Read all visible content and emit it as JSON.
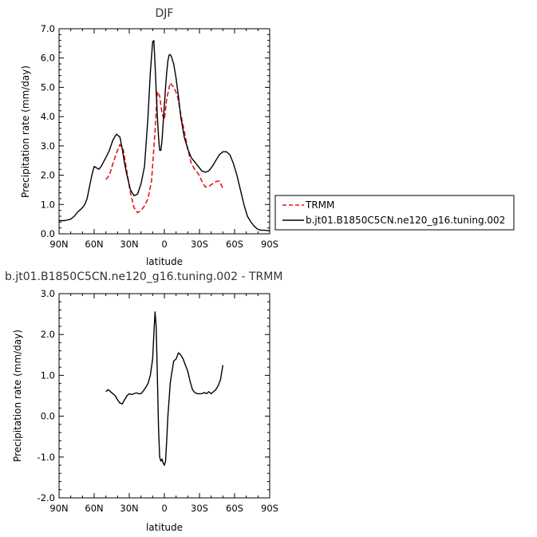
{
  "chart_data": [
    {
      "type": "line",
      "title": "DJF",
      "xlabel": "latitude",
      "ylabel": "Precipitation rate (mm/day)",
      "xlim": [
        90,
        -90
      ],
      "ylim": [
        0,
        7
      ],
      "x_ticks": [
        90,
        60,
        30,
        0,
        -30,
        -60,
        -90
      ],
      "x_tick_labels": [
        "90N",
        "60N",
        "30N",
        "0",
        "30S",
        "60S",
        "90S"
      ],
      "y_ticks": [
        0,
        1,
        2,
        3,
        4,
        5,
        6,
        7
      ],
      "y_tick_labels": [
        "0.0",
        "1.0",
        "2.0",
        "3.0",
        "4.0",
        "5.0",
        "6.0",
        "7.0"
      ],
      "legend": {
        "position": "right",
        "entries": [
          "TRMM",
          "b.jt01.B1850C5CN.ne120_g16.tuning.002"
        ]
      },
      "series": [
        {
          "name": "TRMM",
          "color": "#e8141b",
          "dash": true,
          "x": [
            50,
            47,
            44,
            41,
            38,
            35,
            32,
            29,
            26,
            23,
            20,
            17,
            14,
            11,
            8,
            6,
            4,
            2,
            0,
            -2,
            -5,
            -8,
            -11,
            -14,
            -17,
            -20,
            -23,
            -26,
            -29,
            -32,
            -35,
            -38,
            -41,
            -44,
            -47,
            -50
          ],
          "y": [
            1.85,
            2.0,
            2.4,
            2.75,
            3.05,
            2.85,
            2.1,
            1.4,
            0.9,
            0.72,
            0.8,
            0.95,
            1.2,
            1.8,
            3.5,
            4.85,
            4.7,
            4.1,
            3.9,
            4.6,
            5.15,
            5.0,
            4.75,
            4.1,
            3.5,
            2.9,
            2.4,
            2.2,
            2.05,
            1.8,
            1.6,
            1.62,
            1.7,
            1.78,
            1.8,
            1.55
          ]
        },
        {
          "name": "b.jt01.B1850C5CN.ne120_g16.tuning.002",
          "color": "#000000",
          "dash": false,
          "x": [
            90,
            85,
            80,
            77,
            74,
            71,
            68,
            66,
            64,
            62,
            60,
            58,
            56,
            54,
            52,
            50,
            47,
            44,
            41,
            38,
            36,
            34,
            32,
            29,
            26,
            23,
            20,
            17,
            14,
            12,
            10,
            9,
            8,
            7,
            6,
            5,
            4,
            3,
            2,
            1,
            0,
            -1,
            -2,
            -3,
            -4,
            -5,
            -6,
            -8,
            -10,
            -12,
            -14,
            -17,
            -20,
            -23,
            -26,
            -29,
            -32,
            -35,
            -38,
            -41,
            -44,
            -47,
            -50,
            -53,
            -56,
            -59,
            -62,
            -65,
            -68,
            -71,
            -74,
            -77,
            -80,
            -83,
            -86,
            -90
          ],
          "y": [
            0.45,
            0.45,
            0.5,
            0.6,
            0.75,
            0.85,
            1.0,
            1.2,
            1.6,
            2.0,
            2.3,
            2.25,
            2.2,
            2.3,
            2.45,
            2.6,
            2.85,
            3.2,
            3.4,
            3.3,
            2.9,
            2.4,
            2.0,
            1.5,
            1.3,
            1.35,
            1.7,
            2.3,
            4.0,
            5.5,
            6.55,
            6.6,
            5.8,
            4.9,
            4.0,
            3.3,
            2.85,
            2.85,
            3.2,
            3.8,
            4.4,
            5.0,
            5.5,
            5.9,
            6.1,
            6.12,
            6.05,
            5.8,
            5.3,
            4.7,
            4.0,
            3.3,
            2.9,
            2.6,
            2.45,
            2.3,
            2.15,
            2.1,
            2.15,
            2.3,
            2.5,
            2.7,
            2.8,
            2.8,
            2.7,
            2.4,
            2.0,
            1.5,
            1.0,
            0.6,
            0.4,
            0.25,
            0.15,
            0.12,
            0.12,
            0.1
          ]
        }
      ]
    },
    {
      "type": "line",
      "title": "b.jt01.B1850C5CN.ne120_g16.tuning.002 - TRMM",
      "xlabel": "latitude",
      "ylabel": "Precipitation rate (mm/day)",
      "xlim": [
        90,
        -90
      ],
      "ylim": [
        -2,
        3
      ],
      "x_ticks": [
        90,
        60,
        30,
        0,
        -30,
        -60,
        -90
      ],
      "x_tick_labels": [
        "90N",
        "60N",
        "30N",
        "0",
        "30S",
        "60S",
        "90S"
      ],
      "y_ticks": [
        -2,
        -1,
        0,
        1,
        2,
        3
      ],
      "y_tick_labels": [
        "-2.0",
        "-1.0",
        "0.0",
        "1.0",
        "2.0",
        "3.0"
      ],
      "series": [
        {
          "color": "#000000",
          "dash": false,
          "x": [
            50,
            48,
            46,
            44,
            42,
            40,
            38,
            36,
            34,
            32,
            30,
            28,
            26,
            24,
            22,
            20,
            18,
            16,
            14,
            12,
            10,
            9,
            8,
            7,
            6,
            5,
            4,
            3,
            2,
            1,
            0,
            -1,
            -2,
            -3,
            -4,
            -5,
            -6,
            -8,
            -10,
            -12,
            -14,
            -16,
            -18,
            -20,
            -22,
            -24,
            -26,
            -28,
            -30,
            -32,
            -34,
            -36,
            -38,
            -40,
            -42,
            -44,
            -46,
            -48,
            -50
          ],
          "y": [
            0.6,
            0.65,
            0.6,
            0.55,
            0.5,
            0.4,
            0.32,
            0.3,
            0.4,
            0.5,
            0.55,
            0.53,
            0.55,
            0.57,
            0.55,
            0.55,
            0.62,
            0.7,
            0.8,
            1.0,
            1.4,
            2.0,
            2.55,
            2.2,
            1.0,
            -0.3,
            -1.0,
            -1.1,
            -1.05,
            -1.15,
            -1.2,
            -1.1,
            -0.6,
            0.0,
            0.4,
            0.8,
            1.0,
            1.35,
            1.4,
            1.55,
            1.5,
            1.4,
            1.25,
            1.1,
            0.85,
            0.65,
            0.58,
            0.55,
            0.55,
            0.55,
            0.58,
            0.55,
            0.6,
            0.55,
            0.6,
            0.65,
            0.75,
            0.9,
            1.25
          ]
        }
      ]
    }
  ]
}
